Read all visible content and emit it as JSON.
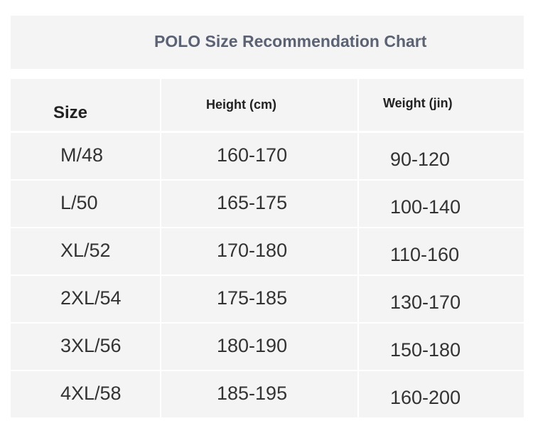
{
  "header": {
    "title": "POLO Size Recommendation Chart"
  },
  "table": {
    "columns": [
      "Size",
      "Height (cm)",
      "Weight (jin)"
    ],
    "rows": [
      [
        "M/48",
        "160-170",
        "90-120"
      ],
      [
        "L/50",
        "165-175",
        "100-140"
      ],
      [
        "XL/52",
        "170-180",
        "110-160"
      ],
      [
        "2XL/54",
        "175-185",
        "130-170"
      ],
      [
        "3XL/56",
        "180-190",
        "150-180"
      ],
      [
        "4XL/58",
        "185-195",
        "160-200"
      ]
    ]
  }
}
